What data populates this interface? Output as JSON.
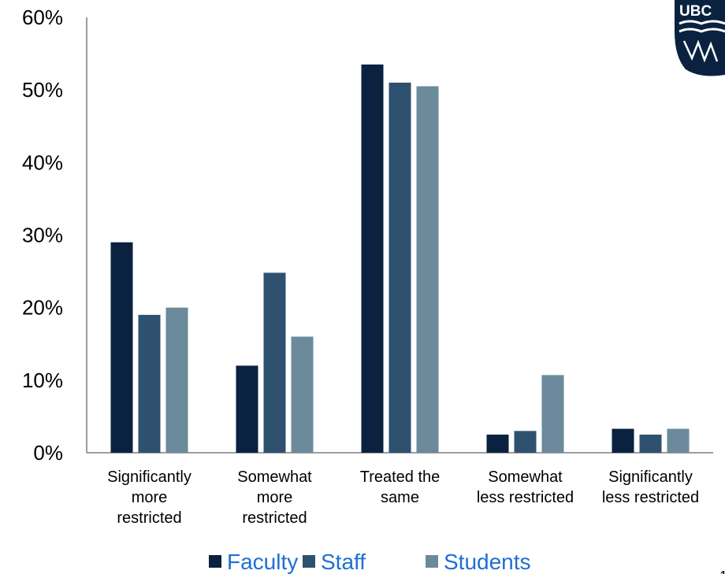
{
  "chart_data": {
    "type": "bar",
    "categories": [
      [
        "Significantly",
        "more",
        "restricted"
      ],
      [
        "Somewhat",
        "more",
        "restricted"
      ],
      [
        "Treated the",
        "same"
      ],
      [
        "Somewhat",
        "less restricted"
      ],
      [
        "Significantly",
        "less restricted"
      ]
    ],
    "series": [
      {
        "name": "Faculty",
        "color": "#0a2240",
        "values": [
          29,
          12,
          53.5,
          2.5,
          3.3
        ]
      },
      {
        "name": "Staff",
        "color": "#2f5170",
        "values": [
          19,
          24.8,
          51,
          3,
          2.5
        ]
      },
      {
        "name": "Students",
        "color": "#6b8a9b",
        "values": [
          20,
          16,
          50.5,
          10.7,
          3.3
        ]
      }
    ],
    "yticks": [
      "0%",
      "10%",
      "20%",
      "30%",
      "40%",
      "50%",
      "60%"
    ],
    "ylim": [
      0,
      60
    ],
    "legend_position": "bottom",
    "grid": false
  },
  "logo": {
    "text": "UBC",
    "icon": "ubc-crest-icon",
    "color": "#0a2240"
  },
  "page_number": "1"
}
